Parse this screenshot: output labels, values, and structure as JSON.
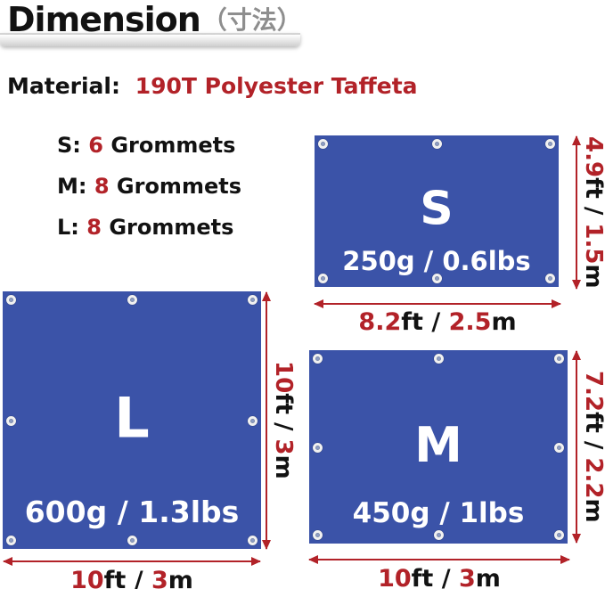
{
  "header": {
    "title": "Dimension",
    "title_jp": "（寸法）"
  },
  "material": {
    "label": "Material:",
    "value": "190T Polyester Taffeta"
  },
  "grommet_list": [
    {
      "size": "S:",
      "count": "6",
      "label": "Grommets"
    },
    {
      "size": "M:",
      "count": "8",
      "label": "Grommets"
    },
    {
      "size": "L:",
      "count": "8",
      "label": "Grommets"
    }
  ],
  "tarps": {
    "s": {
      "name": "S",
      "weight": "250g / 0.6lbs",
      "grommets_shown": 6,
      "width": {
        "num1": "8.2",
        "unit1": "ft / ",
        "num2": "2.5",
        "unit2": "m"
      },
      "height": {
        "num1": "4.9",
        "unit1": "ft / ",
        "num2": "1.5",
        "unit2": "m"
      }
    },
    "m": {
      "name": "M",
      "weight": "450g / 1lbs",
      "grommets_shown": 8,
      "width": {
        "num1": "10",
        "unit1": "ft / ",
        "num2": "3",
        "unit2": "m"
      },
      "height": {
        "num1": "7.2",
        "unit1": "ft / ",
        "num2": "2.2",
        "unit2": "m"
      }
    },
    "l": {
      "name": "L",
      "weight": "600g / 1.3lbs",
      "grommets_shown": 8,
      "width": {
        "num1": "10",
        "unit1": "ft / ",
        "num2": "3",
        "unit2": "m"
      },
      "height": {
        "num1": "10",
        "unit1": "ft / ",
        "num2": "3",
        "unit2": "m"
      }
    }
  },
  "colors": {
    "tarp_blue": "#3b53a8",
    "accent_red": "#b22228",
    "title_gray": "#8e8e8e"
  }
}
